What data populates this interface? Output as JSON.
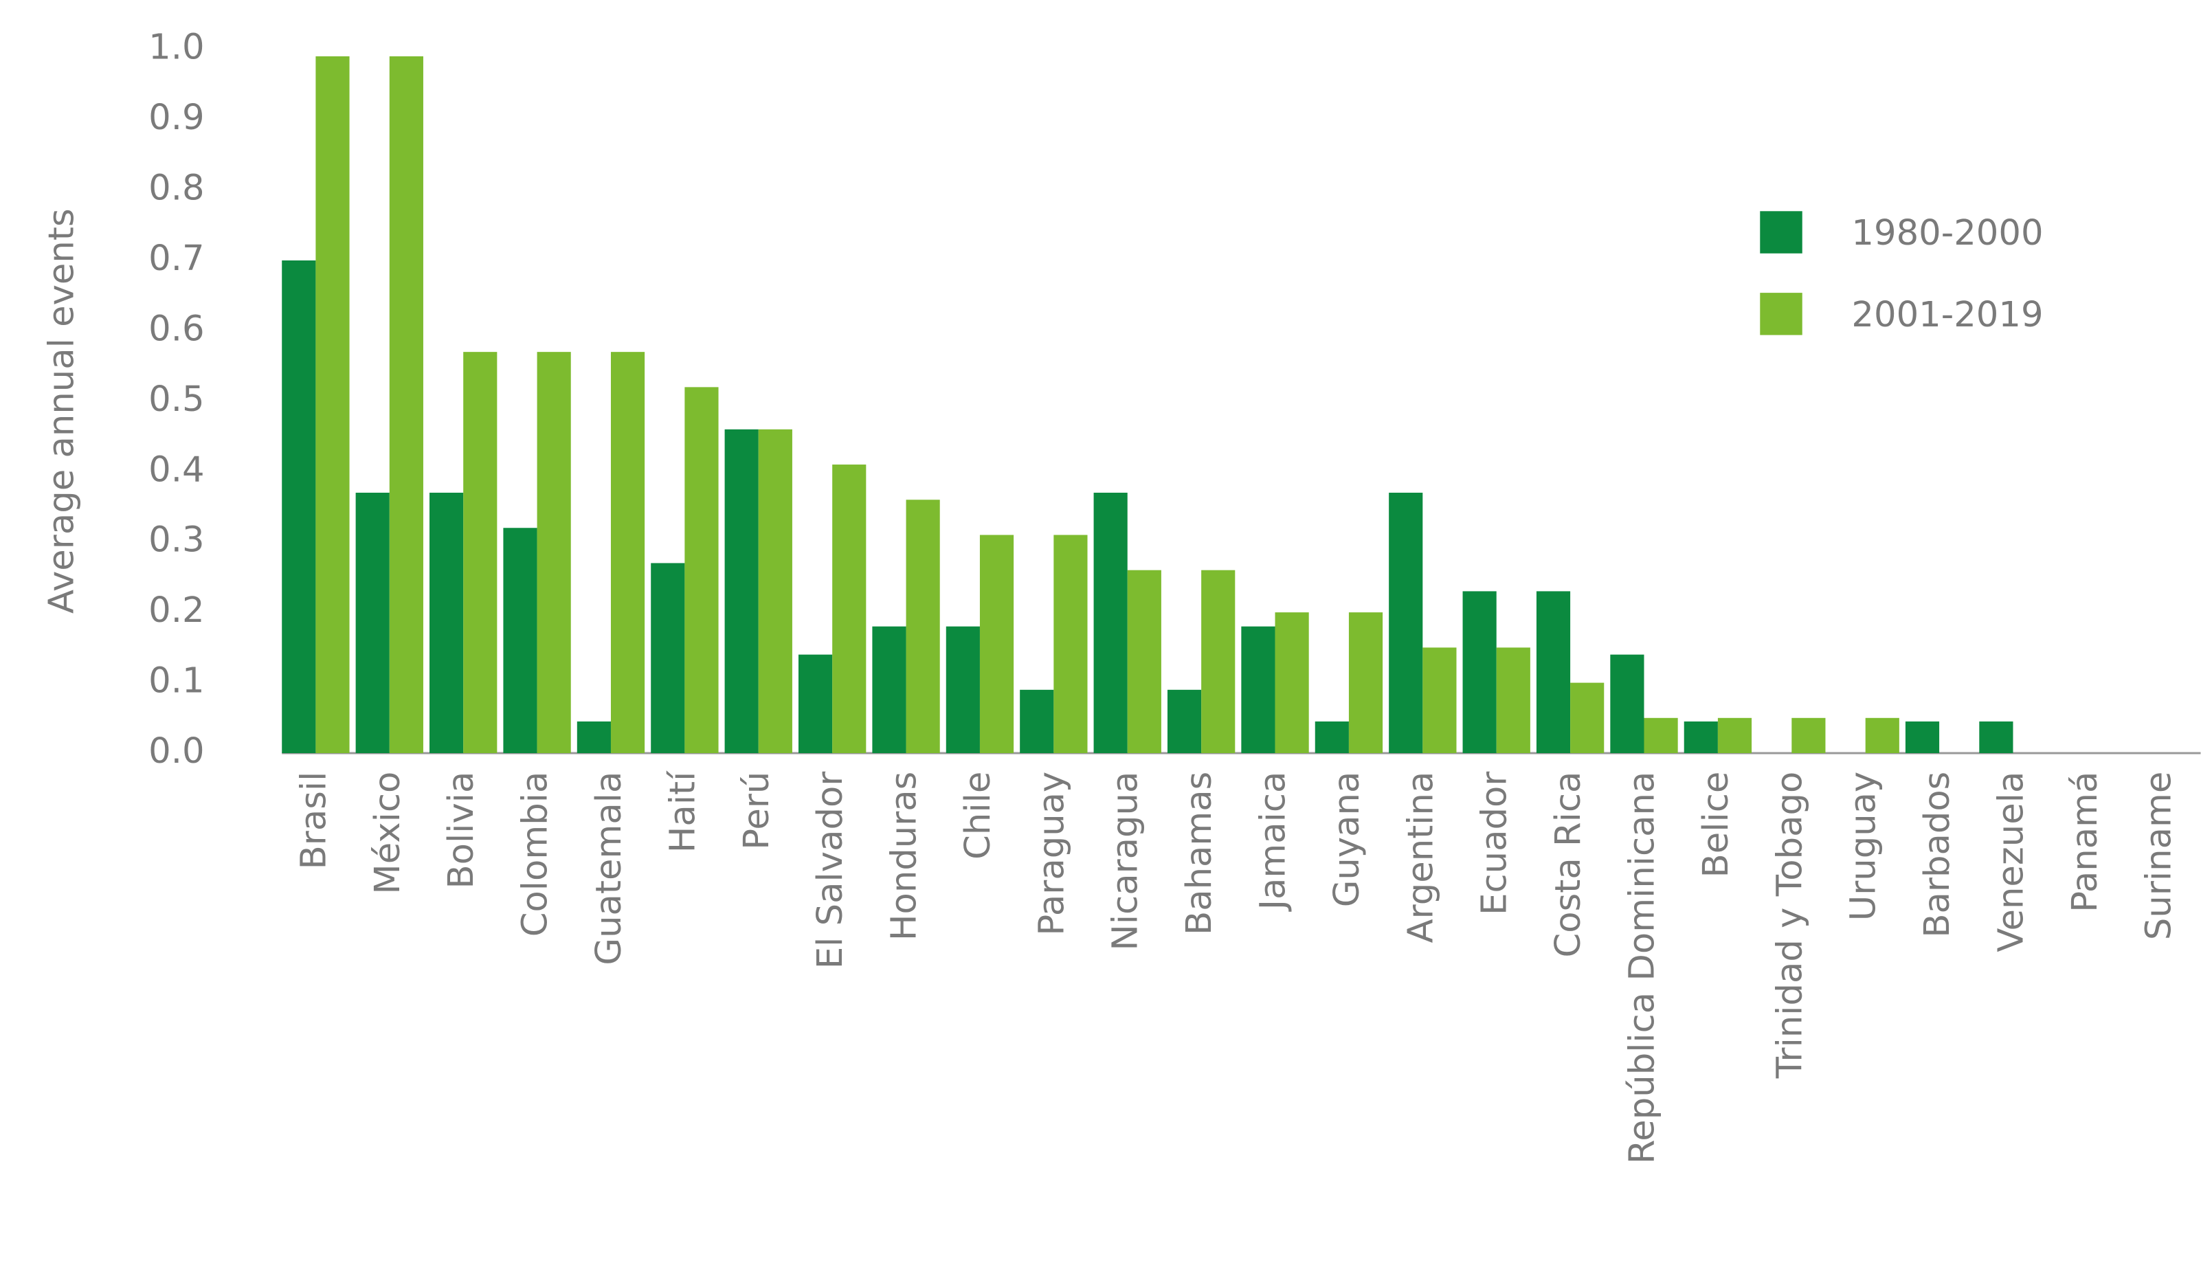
{
  "chart_data": {
    "type": "bar",
    "y_label": "Average annual events",
    "categories": [
      "Brasil",
      "México",
      "Bolivia",
      "Colombia",
      "Guatemala",
      "Haití",
      "Perú",
      "El Salvador",
      "Honduras",
      "Chile",
      "Paraguay",
      "Nicaragua",
      "Bahamas",
      "Jamaica",
      "Guyana",
      "Argentina",
      "Ecuador",
      "Costa Rica",
      "República Dominicana",
      "Belice",
      "Trinidad y Tobago",
      "Uruguay",
      "Barbados",
      "Venezuela",
      "Panamá",
      "Suriname"
    ],
    "series": [
      {
        "name": "1980-2000",
        "color": "#0b8a3f",
        "values": [
          0.7,
          0.37,
          0.37,
          0.32,
          0.045,
          0.27,
          0.46,
          0.14,
          0.18,
          0.18,
          0.09,
          0.37,
          0.09,
          0.18,
          0.045,
          0.37,
          0.23,
          0.23,
          0.14,
          0.045,
          0,
          0,
          0.045,
          0.045,
          0,
          0
        ]
      },
      {
        "name": "2001-2019",
        "color": "#7dbb2f",
        "values": [
          0.99,
          0.99,
          0.57,
          0.57,
          0.57,
          0.52,
          0.46,
          0.41,
          0.36,
          0.31,
          0.31,
          0.26,
          0.26,
          0.2,
          0.2,
          0.15,
          0.15,
          0.1,
          0.05,
          0.05,
          0.05,
          0.05,
          0,
          0,
          0,
          0
        ]
      }
    ],
    "ylim": [
      0,
      1
    ],
    "yticks": [
      {
        "value": 0,
        "label": "0.0"
      },
      0.1,
      0.2,
      0.3,
      0.4,
      0.5,
      0.6,
      0.7,
      0.8,
      0.9,
      {
        "value": 1,
        "label": "1.0"
      }
    ],
    "legend": "upper right"
  }
}
